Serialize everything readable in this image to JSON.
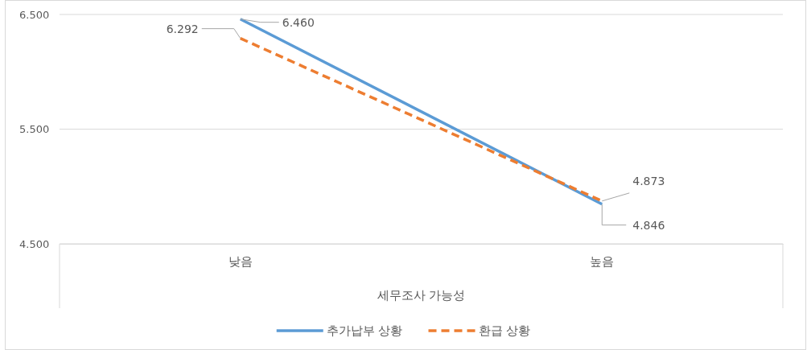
{
  "chart_data": {
    "type": "line",
    "xlabel": "세무조사 가능성",
    "categories": [
      "낮음",
      "높음"
    ],
    "series": [
      {
        "name": "추가납부 상황",
        "color": "#5b9bd5",
        "line_style": "solid",
        "values": [
          6.46,
          4.846
        ],
        "value_labels": [
          "6.460",
          "4.846"
        ]
      },
      {
        "name": "환급 상황",
        "color": "#ed7d31",
        "line_style": "dashed",
        "values": [
          6.292,
          4.873
        ],
        "value_labels": [
          "6.292",
          "4.873"
        ]
      }
    ],
    "ylim": [
      4.5,
      6.5
    ],
    "yticks": [
      {
        "value": 4.5,
        "label": "4.500"
      },
      {
        "value": 5.5,
        "label": "5.500"
      },
      {
        "value": 6.5,
        "label": "6.500"
      }
    ],
    "grid": "y",
    "legend": "bottom",
    "marker": "none"
  }
}
